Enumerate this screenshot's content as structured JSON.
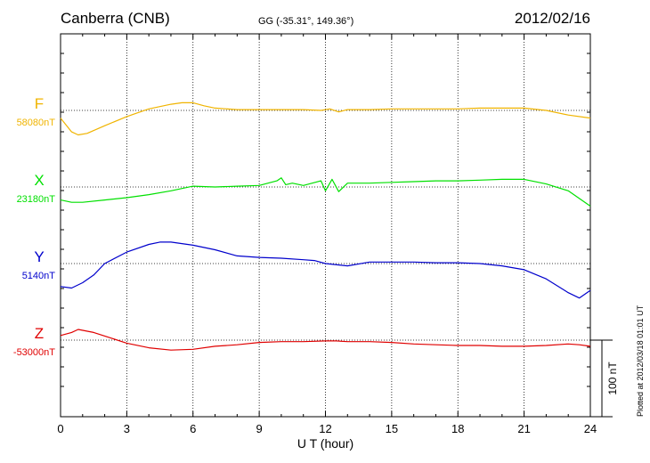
{
  "header": {
    "station": "Canberra (CNB)",
    "coords": "GG (-35.31°, 149.36°)",
    "date": "2012/02/16"
  },
  "footer": {
    "plotted": "Plotted at 2012/03/18 01:01  UT"
  },
  "chart_data": {
    "type": "line",
    "xlabel": "U T (hour)",
    "xlim": [
      0,
      24
    ],
    "xticks": [
      0,
      3,
      6,
      9,
      12,
      15,
      18,
      21,
      24
    ],
    "scale_bar": {
      "value": 100,
      "label": "100 nT"
    },
    "colors": {
      "F": "#f0b400",
      "X": "#00e000",
      "Y": "#0000cc",
      "Z": "#e00000"
    },
    "series": [
      {
        "name": "F",
        "baseline_label": "58080nT",
        "baseline_nT": 58080,
        "x": [
          0,
          0.5,
          0.8,
          1.2,
          2,
          3,
          4,
          5,
          5.5,
          6,
          6.5,
          7,
          8,
          9,
          10,
          11,
          11.8,
          12.2,
          12.6,
          13,
          14,
          15,
          16,
          17,
          18,
          19,
          20,
          21,
          22,
          23,
          24
        ],
        "values": [
          -10,
          -28,
          -32,
          -30,
          -20,
          -8,
          2,
          8,
          10,
          10,
          6,
          3,
          1,
          1,
          1,
          1,
          0,
          2,
          -2,
          1,
          1,
          2,
          2,
          2,
          2,
          3,
          3,
          3,
          0,
          -6,
          -10
        ]
      },
      {
        "name": "X",
        "baseline_label": "23180nT",
        "baseline_nT": 23180,
        "x": [
          0,
          0.5,
          1,
          2,
          3,
          4,
          5,
          6,
          7,
          8,
          9,
          9.8,
          10,
          10.2,
          10.5,
          11,
          11.8,
          12,
          12.3,
          12.6,
          13,
          14,
          15,
          16,
          17,
          18,
          19,
          20,
          21,
          22,
          23,
          24
        ],
        "values": [
          -17,
          -20,
          -20,
          -17,
          -14,
          -10,
          -5,
          1,
          0,
          1,
          2,
          8,
          12,
          3,
          5,
          2,
          8,
          -5,
          10,
          -6,
          5,
          5,
          6,
          7,
          8,
          8,
          9,
          10,
          10,
          4,
          -5,
          -25
        ]
      },
      {
        "name": "Y",
        "baseline_label": "5140nT",
        "baseline_nT": 5140,
        "x": [
          0,
          0.5,
          1,
          1.5,
          2,
          3,
          4,
          4.5,
          5,
          6,
          7,
          8,
          9,
          10,
          11,
          11.5,
          12,
          13,
          14,
          15,
          16,
          17,
          18,
          19,
          20,
          21,
          22,
          23,
          23.5,
          24
        ],
        "values": [
          -30,
          -32,
          -25,
          -15,
          0,
          15,
          25,
          28,
          28,
          24,
          18,
          10,
          8,
          7,
          5,
          4,
          0,
          -3,
          2,
          2,
          2,
          1,
          1,
          0,
          -3,
          -8,
          -20,
          -38,
          -45,
          -35
        ]
      },
      {
        "name": "Z",
        "baseline_label": "-53000nT",
        "baseline_nT": -53000,
        "x": [
          0,
          0.5,
          0.8,
          1.5,
          3,
          4,
          5,
          6,
          7,
          8,
          9,
          10,
          11,
          12,
          12.5,
          13,
          14,
          15,
          16,
          17,
          18,
          19,
          20,
          21,
          22,
          23,
          23.5,
          24
        ],
        "values": [
          6,
          10,
          14,
          10,
          -4,
          -10,
          -13,
          -12,
          -8,
          -6,
          -3,
          -2,
          -2,
          -1,
          -1,
          -2,
          -2,
          -3,
          -5,
          -6,
          -7,
          -7,
          -8,
          -8,
          -7,
          -5,
          -6,
          -8
        ]
      }
    ]
  }
}
